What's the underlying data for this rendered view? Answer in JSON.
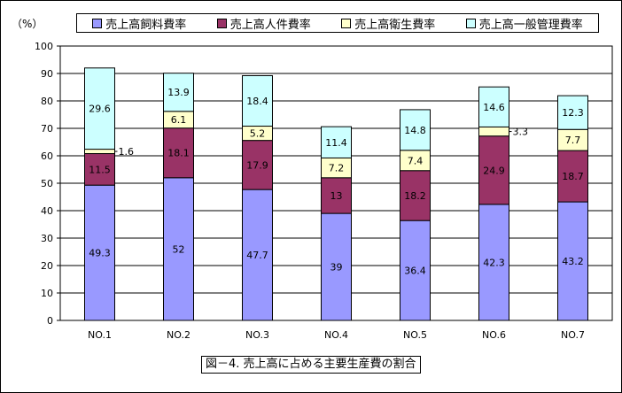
{
  "chart_data": {
    "type": "bar",
    "stacked": true,
    "unit_label": "（%）",
    "caption": "図－4. 売上高に占める主要生産費の割合",
    "categories": [
      "NO.1",
      "NO.2",
      "NO.3",
      "NO.4",
      "NO.5",
      "NO.6",
      "NO.7"
    ],
    "ylim": [
      0,
      100
    ],
    "yticks": [
      0,
      10,
      20,
      30,
      40,
      50,
      60,
      70,
      80,
      90,
      100
    ],
    "grid": true,
    "legend_position": "top",
    "series": [
      {
        "name": "売上高飼料費率",
        "color": "#9999ff",
        "values": [
          49.3,
          52,
          47.7,
          39,
          36.4,
          42.3,
          43.2
        ]
      },
      {
        "name": "売上高人件費率",
        "color": "#993366",
        "values": [
          11.5,
          18.1,
          17.9,
          13,
          18.2,
          24.9,
          18.7
        ]
      },
      {
        "name": "売上高衛生費率",
        "color": "#ffffcc",
        "values": [
          1.6,
          6.1,
          5.2,
          7.2,
          7.4,
          3.3,
          7.7
        ]
      },
      {
        "name": "売上高一般管理費率",
        "color": "#ccffff",
        "values": [
          29.6,
          13.9,
          18.4,
          11.4,
          14.8,
          14.6,
          12.3
        ]
      }
    ],
    "outside_labels": [
      {
        "category": "NO.1",
        "series": 2
      },
      {
        "category": "NO.6",
        "series": 2
      }
    ]
  }
}
